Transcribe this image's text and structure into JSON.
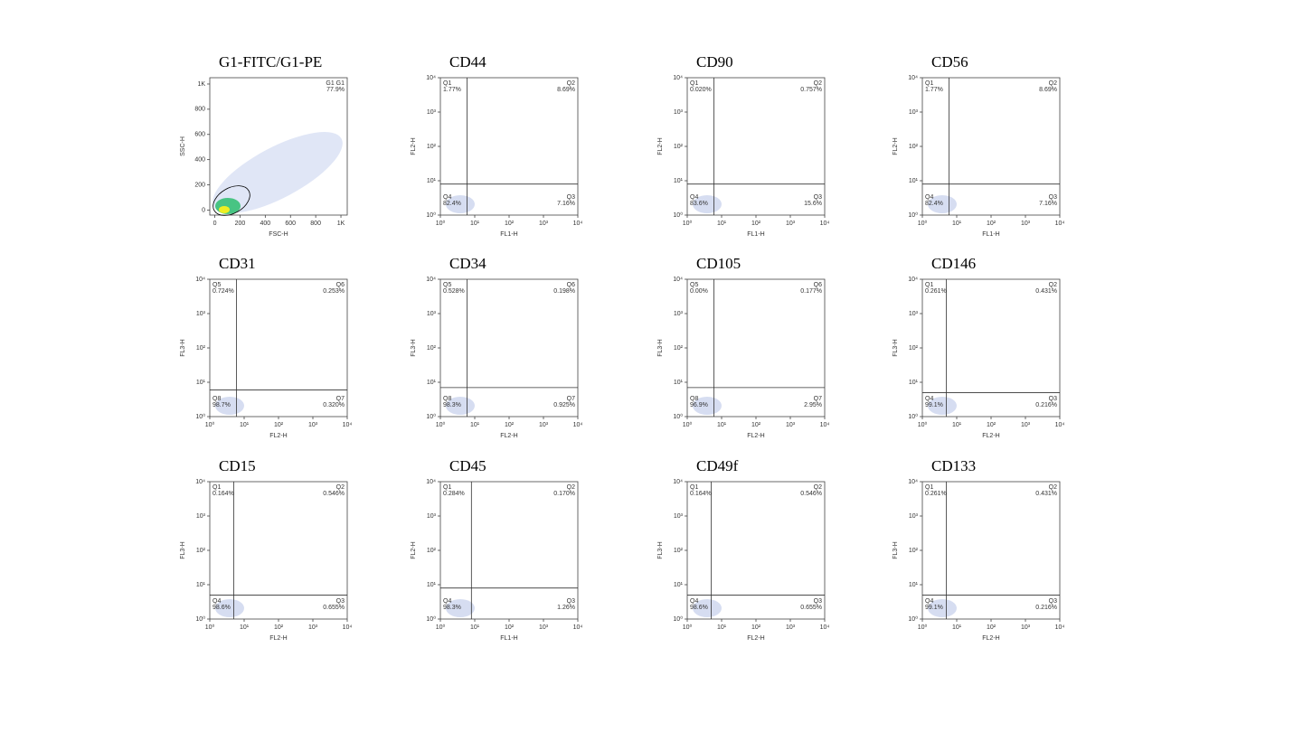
{
  "chart_data": [
    {
      "type": "density",
      "title": "G1-FITC/G1-PE",
      "xlabel": "FSC-H",
      "ylabel": "SSC-H",
      "log": false,
      "xlim": [
        -40,
        1050
      ],
      "ylim": [
        -40,
        1050
      ],
      "xticks": [
        0,
        200,
        400,
        600,
        800,
        {
          "value": 1000,
          "label": "1K"
        }
      ],
      "yticks": [
        0,
        200,
        400,
        600,
        800,
        {
          "value": 1000,
          "label": "1K"
        }
      ],
      "quadrant_names": [
        "G1 G1"
      ],
      "values": [
        77.9
      ],
      "value_labels": [
        "77.9%"
      ]
    },
    {
      "type": "quadrant",
      "title": "CD44",
      "xlabel": "FL1-H",
      "ylabel": "FL2-H",
      "log": true,
      "xlim": [
        1,
        10000
      ],
      "ylim": [
        1,
        10000
      ],
      "xticks": [
        {
          "value": 1,
          "label": "10⁰"
        },
        {
          "value": 10,
          "label": "10¹"
        },
        {
          "value": 100,
          "label": "10²"
        },
        {
          "value": 1000,
          "label": "10³"
        },
        {
          "value": 10000,
          "label": "10⁴"
        }
      ],
      "yticks": [
        {
          "value": 1,
          "label": "10⁰"
        },
        {
          "value": 10,
          "label": "10¹"
        },
        {
          "value": 100,
          "label": "10²"
        },
        {
          "value": 1000,
          "label": "10³"
        },
        {
          "value": 10000,
          "label": "10⁴"
        }
      ],
      "gate_x": 6,
      "gate_y": 8,
      "quadrant_names": [
        "Q1",
        "Q2",
        "Q3",
        "Q4"
      ],
      "values": [
        1.77,
        8.69,
        7.16,
        82.4
      ],
      "value_labels": [
        "1.77%",
        "8.69%",
        "7.16%",
        "82.4%"
      ]
    },
    {
      "type": "quadrant",
      "title": "CD90",
      "xlabel": "FL1-H",
      "ylabel": "FL2-H",
      "log": true,
      "xlim": [
        1,
        10000
      ],
      "ylim": [
        1,
        10000
      ],
      "xticks": [
        {
          "value": 1,
          "label": "10⁰"
        },
        {
          "value": 10,
          "label": "10¹"
        },
        {
          "value": 100,
          "label": "10²"
        },
        {
          "value": 1000,
          "label": "10³"
        },
        {
          "value": 10000,
          "label": "10⁴"
        }
      ],
      "yticks": [
        {
          "value": 1,
          "label": "10⁰"
        },
        {
          "value": 10,
          "label": "10¹"
        },
        {
          "value": 100,
          "label": "10²"
        },
        {
          "value": 1000,
          "label": "10³"
        },
        {
          "value": 10000,
          "label": "10⁴"
        }
      ],
      "gate_x": 6,
      "gate_y": 8,
      "quadrant_names": [
        "Q1",
        "Q2",
        "Q3",
        "Q4"
      ],
      "values": [
        0.02,
        0.757,
        15.6,
        83.6
      ],
      "value_labels": [
        "0.020%",
        "0.757%",
        "15.6%",
        "83.6%"
      ]
    },
    {
      "type": "quadrant",
      "title": "CD56",
      "xlabel": "FL1-H",
      "ylabel": "FL2-H",
      "log": true,
      "xlim": [
        1,
        10000
      ],
      "ylim": [
        1,
        10000
      ],
      "xticks": [
        {
          "value": 1,
          "label": "10⁰"
        },
        {
          "value": 10,
          "label": "10¹"
        },
        {
          "value": 100,
          "label": "10²"
        },
        {
          "value": 1000,
          "label": "10³"
        },
        {
          "value": 10000,
          "label": "10⁴"
        }
      ],
      "yticks": [
        {
          "value": 1,
          "label": "10⁰"
        },
        {
          "value": 10,
          "label": "10¹"
        },
        {
          "value": 100,
          "label": "10²"
        },
        {
          "value": 1000,
          "label": "10³"
        },
        {
          "value": 10000,
          "label": "10⁴"
        }
      ],
      "gate_x": 6,
      "gate_y": 8,
      "quadrant_names": [
        "Q1",
        "Q2",
        "Q3",
        "Q4"
      ],
      "values": [
        1.77,
        8.69,
        7.16,
        82.4
      ],
      "value_labels": [
        "1.77%",
        "8.69%",
        "7.16%",
        "82.4%"
      ]
    },
    {
      "type": "quadrant",
      "title": "CD31",
      "xlabel": "FL2-H",
      "ylabel": "FL3-H",
      "log": true,
      "xlim": [
        1,
        10000
      ],
      "ylim": [
        1,
        10000
      ],
      "xticks": [
        {
          "value": 1,
          "label": "10⁰"
        },
        {
          "value": 10,
          "label": "10¹"
        },
        {
          "value": 100,
          "label": "10²"
        },
        {
          "value": 1000,
          "label": "10³"
        },
        {
          "value": 10000,
          "label": "10⁴"
        }
      ],
      "yticks": [
        {
          "value": 1,
          "label": "10⁰"
        },
        {
          "value": 10,
          "label": "10¹"
        },
        {
          "value": 100,
          "label": "10²"
        },
        {
          "value": 1000,
          "label": "10³"
        },
        {
          "value": 10000,
          "label": "10⁴"
        }
      ],
      "gate_x": 6,
      "gate_y": 6,
      "quadrant_names": [
        "Q5",
        "Q6",
        "Q7",
        "Q8"
      ],
      "values": [
        0.724,
        0.253,
        0.32,
        98.7
      ],
      "value_labels": [
        "0.724%",
        "0.253%",
        "0.320%",
        "98.7%"
      ]
    },
    {
      "type": "quadrant",
      "title": "CD34",
      "xlabel": "FL2-H",
      "ylabel": "FL3-H",
      "log": true,
      "xlim": [
        1,
        10000
      ],
      "ylim": [
        1,
        10000
      ],
      "xticks": [
        {
          "value": 1,
          "label": "10⁰"
        },
        {
          "value": 10,
          "label": "10¹"
        },
        {
          "value": 100,
          "label": "10²"
        },
        {
          "value": 1000,
          "label": "10³"
        },
        {
          "value": 10000,
          "label": "10⁴"
        }
      ],
      "yticks": [
        {
          "value": 1,
          "label": "10⁰"
        },
        {
          "value": 10,
          "label": "10¹"
        },
        {
          "value": 100,
          "label": "10²"
        },
        {
          "value": 1000,
          "label": "10³"
        },
        {
          "value": 10000,
          "label": "10⁴"
        }
      ],
      "gate_x": 6,
      "gate_y": 7,
      "quadrant_names": [
        "Q5",
        "Q6",
        "Q7",
        "Q8"
      ],
      "values": [
        0.528,
        0.198,
        0.925,
        98.3
      ],
      "value_labels": [
        "0.528%",
        "0.198%",
        "0.925%",
        "98.3%"
      ]
    },
    {
      "type": "quadrant",
      "title": "CD105",
      "xlabel": "FL2-H",
      "ylabel": "FL3-H",
      "log": true,
      "xlim": [
        1,
        10000
      ],
      "ylim": [
        1,
        10000
      ],
      "xticks": [
        {
          "value": 1,
          "label": "10⁰"
        },
        {
          "value": 10,
          "label": "10¹"
        },
        {
          "value": 100,
          "label": "10²"
        },
        {
          "value": 1000,
          "label": "10³"
        },
        {
          "value": 10000,
          "label": "10⁴"
        }
      ],
      "yticks": [
        {
          "value": 1,
          "label": "10⁰"
        },
        {
          "value": 10,
          "label": "10¹"
        },
        {
          "value": 100,
          "label": "10²"
        },
        {
          "value": 1000,
          "label": "10³"
        },
        {
          "value": 10000,
          "label": "10⁴"
        }
      ],
      "gate_x": 6,
      "gate_y": 7,
      "quadrant_names": [
        "Q5",
        "Q6",
        "Q7",
        "Q8"
      ],
      "values": [
        0.0,
        0.177,
        2.95,
        96.9
      ],
      "value_labels": [
        "0.00%",
        "0.177%",
        "2.95%",
        "96.9%"
      ]
    },
    {
      "type": "quadrant",
      "title": "CD146",
      "xlabel": "FL2-H",
      "ylabel": "FL3-H",
      "log": true,
      "xlim": [
        1,
        10000
      ],
      "ylim": [
        1,
        10000
      ],
      "xticks": [
        {
          "value": 1,
          "label": "10⁰"
        },
        {
          "value": 10,
          "label": "10¹"
        },
        {
          "value": 100,
          "label": "10²"
        },
        {
          "value": 1000,
          "label": "10³"
        },
        {
          "value": 10000,
          "label": "10⁴"
        }
      ],
      "yticks": [
        {
          "value": 1,
          "label": "10⁰"
        },
        {
          "value": 10,
          "label": "10¹"
        },
        {
          "value": 100,
          "label": "10²"
        },
        {
          "value": 1000,
          "label": "10³"
        },
        {
          "value": 10000,
          "label": "10⁴"
        }
      ],
      "gate_x": 5,
      "gate_y": 5,
      "quadrant_names": [
        "Q1",
        "Q2",
        "Q3",
        "Q4"
      ],
      "values": [
        0.261,
        0.431,
        0.216,
        99.1
      ],
      "value_labels": [
        "0.261%",
        "0.431%",
        "0.216%",
        "99.1%"
      ]
    },
    {
      "type": "quadrant",
      "title": "CD15",
      "xlabel": "FL2-H",
      "ylabel": "FL3-H",
      "log": true,
      "xlim": [
        1,
        10000
      ],
      "ylim": [
        1,
        10000
      ],
      "xticks": [
        {
          "value": 1,
          "label": "10⁰"
        },
        {
          "value": 10,
          "label": "10¹"
        },
        {
          "value": 100,
          "label": "10²"
        },
        {
          "value": 1000,
          "label": "10³"
        },
        {
          "value": 10000,
          "label": "10⁴"
        }
      ],
      "yticks": [
        {
          "value": 1,
          "label": "10⁰"
        },
        {
          "value": 10,
          "label": "10¹"
        },
        {
          "value": 100,
          "label": "10²"
        },
        {
          "value": 1000,
          "label": "10³"
        },
        {
          "value": 10000,
          "label": "10⁴"
        }
      ],
      "gate_x": 5,
      "gate_y": 5,
      "quadrant_names": [
        "Q1",
        "Q2",
        "Q3",
        "Q4"
      ],
      "values": [
        0.164,
        0.546,
        0.655,
        98.6
      ],
      "value_labels": [
        "0.164%",
        "0.546%",
        "0.655%",
        "98.6%"
      ]
    },
    {
      "type": "quadrant",
      "title": "CD45",
      "xlabel": "FL1-H",
      "ylabel": "FL2-H",
      "log": true,
      "xlim": [
        1,
        10000
      ],
      "ylim": [
        1,
        10000
      ],
      "xticks": [
        {
          "value": 1,
          "label": "10⁰"
        },
        {
          "value": 10,
          "label": "10¹"
        },
        {
          "value": 100,
          "label": "10²"
        },
        {
          "value": 1000,
          "label": "10³"
        },
        {
          "value": 10000,
          "label": "10⁴"
        }
      ],
      "yticks": [
        {
          "value": 1,
          "label": "10⁰"
        },
        {
          "value": 10,
          "label": "10¹"
        },
        {
          "value": 100,
          "label": "10²"
        },
        {
          "value": 1000,
          "label": "10³"
        },
        {
          "value": 10000,
          "label": "10⁴"
        }
      ],
      "gate_x": 8,
      "gate_y": 8,
      "quadrant_names": [
        "Q1",
        "Q2",
        "Q3",
        "Q4"
      ],
      "values": [
        0.284,
        0.17,
        1.26,
        98.3
      ],
      "value_labels": [
        "0.284%",
        "0.170%",
        "1.26%",
        "98.3%"
      ]
    },
    {
      "type": "quadrant",
      "title": "CD49f",
      "xlabel": "FL2-H",
      "ylabel": "FL3-H",
      "log": true,
      "xlim": [
        1,
        10000
      ],
      "ylim": [
        1,
        10000
      ],
      "xticks": [
        {
          "value": 1,
          "label": "10⁰"
        },
        {
          "value": 10,
          "label": "10¹"
        },
        {
          "value": 100,
          "label": "10²"
        },
        {
          "value": 1000,
          "label": "10³"
        },
        {
          "value": 10000,
          "label": "10⁴"
        }
      ],
      "yticks": [
        {
          "value": 1,
          "label": "10⁰"
        },
        {
          "value": 10,
          "label": "10¹"
        },
        {
          "value": 100,
          "label": "10²"
        },
        {
          "value": 1000,
          "label": "10³"
        },
        {
          "value": 10000,
          "label": "10⁴"
        }
      ],
      "gate_x": 5,
      "gate_y": 5,
      "quadrant_names": [
        "Q1",
        "Q2",
        "Q3",
        "Q4"
      ],
      "values": [
        0.164,
        0.546,
        0.655,
        98.6
      ],
      "value_labels": [
        "0.164%",
        "0.546%",
        "0.655%",
        "98.6%"
      ]
    },
    {
      "type": "quadrant",
      "title": "CD133",
      "xlabel": "FL2-H",
      "ylabel": "FL3-H",
      "log": true,
      "xlim": [
        1,
        10000
      ],
      "ylim": [
        1,
        10000
      ],
      "xticks": [
        {
          "value": 1,
          "label": "10⁰"
        },
        {
          "value": 10,
          "label": "10¹"
        },
        {
          "value": 100,
          "label": "10²"
        },
        {
          "value": 1000,
          "label": "10³"
        },
        {
          "value": 10000,
          "label": "10⁴"
        }
      ],
      "yticks": [
        {
          "value": 1,
          "label": "10⁰"
        },
        {
          "value": 10,
          "label": "10¹"
        },
        {
          "value": 100,
          "label": "10²"
        },
        {
          "value": 1000,
          "label": "10³"
        },
        {
          "value": 10000,
          "label": "10⁴"
        }
      ],
      "gate_x": 5,
      "gate_y": 5,
      "quadrant_names": [
        "Q1",
        "Q2",
        "Q3",
        "Q4"
      ],
      "values": [
        0.261,
        0.431,
        0.216,
        99.1
      ],
      "value_labels": [
        "0.261%",
        "0.431%",
        "0.216%",
        "99.1%"
      ]
    }
  ]
}
